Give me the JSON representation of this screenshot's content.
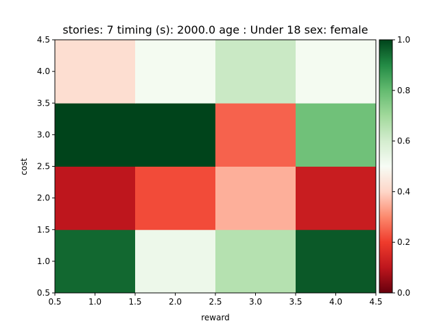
{
  "chart_data": {
    "type": "heatmap",
    "title": "stories: 7 timing (s): 2000.0 age : Under 18 sex: female",
    "xlabel": "reward",
    "ylabel": "cost",
    "xlim": [
      0.5,
      4.5
    ],
    "ylim": [
      0.5,
      4.5
    ],
    "x": [
      1,
      2,
      3,
      4
    ],
    "y": [
      1,
      2,
      3,
      4
    ],
    "x_ticks": [
      "0.5",
      "1.0",
      "1.5",
      "2.0",
      "2.5",
      "3.0",
      "3.5",
      "4.0",
      "4.5"
    ],
    "y_ticks": [
      "0.5",
      "1.0",
      "1.5",
      "2.0",
      "2.5",
      "3.0",
      "3.5",
      "4.0",
      "4.5"
    ],
    "values": [
      [
        0.95,
        0.53,
        0.66,
        0.97
      ],
      [
        0.1,
        0.22,
        0.35,
        0.12
      ],
      [
        1.0,
        1.0,
        0.25,
        0.78
      ],
      [
        0.42,
        0.51,
        0.62,
        0.51
      ]
    ],
    "colorbar": {
      "colormap": "RdYlGn-like (dark red to white to dark green)",
      "range": [
        0.0,
        1.0
      ],
      "ticks": [
        "0.0",
        "0.2",
        "0.4",
        "0.6",
        "0.8",
        "1.0"
      ]
    },
    "grid": false
  }
}
